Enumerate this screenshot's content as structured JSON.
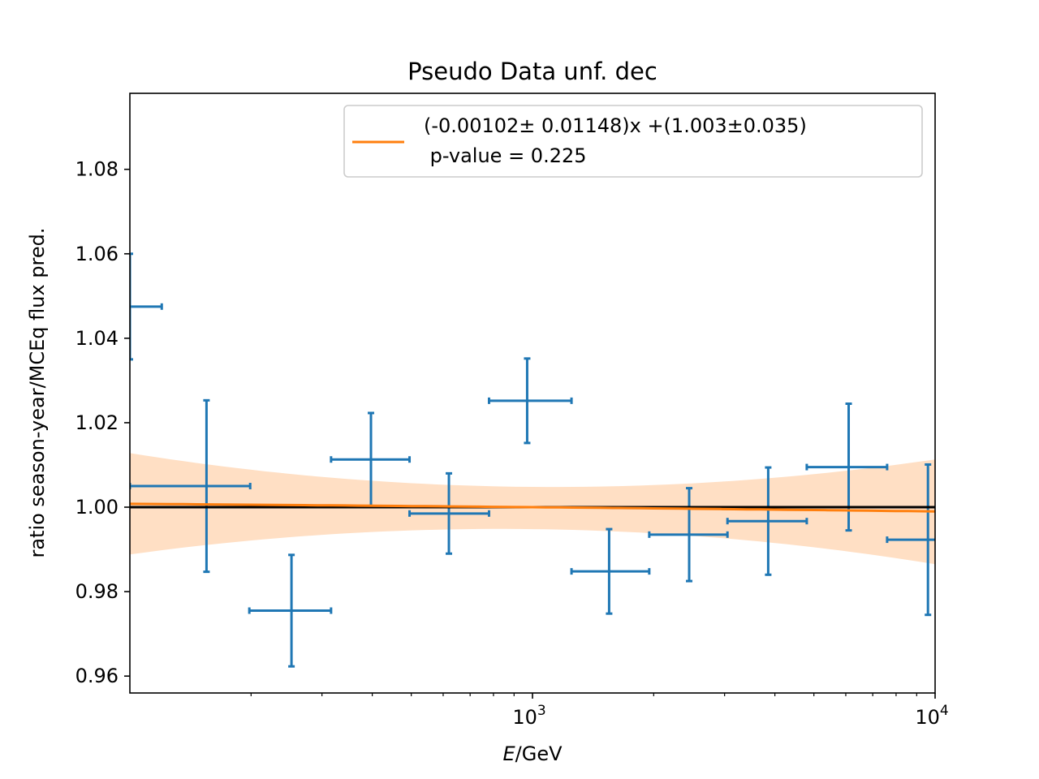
{
  "chart_data": {
    "type": "scatter",
    "title": "Pseudo Data unf. dec",
    "xlabel_italic": "E",
    "xlabel_rest": "/GeV",
    "ylabel": "ratio season-year/MCEq flux pred.",
    "xscale": "log",
    "xlim": [
      100,
      10000
    ],
    "ylim": [
      0.956,
      1.098
    ],
    "yticks": [
      0.96,
      0.98,
      1.0,
      1.02,
      1.04,
      1.06,
      1.08
    ],
    "ytick_labels": [
      "0.96",
      "0.98",
      "1.00",
      "1.02",
      "1.04",
      "1.06",
      "1.08"
    ],
    "xtick_major": [
      {
        "value": 1000,
        "base": "10",
        "exp": "3"
      },
      {
        "value": 10000,
        "base": "10",
        "exp": "4"
      }
    ],
    "legend_position": "upper right",
    "legend_entries": [
      {
        "line1": "(-0.00102± 0.01148)x +(1.003±0.035)",
        "line2": " p-value = 0.225"
      }
    ],
    "reference_line_y": 1.0,
    "fit": {
      "slope": -0.00102,
      "intercept": 1.003
    },
    "fit_band": {
      "x": [
        100,
        1000,
        10000
      ],
      "lower": [
        0.9888,
        0.9948,
        0.9865
      ],
      "upper": [
        1.0128,
        1.0048,
        1.0113
      ],
      "center": [
        1.0008,
        1.0,
        0.999
      ]
    },
    "series": [
      {
        "points": [
          {
            "x": 100,
            "xlo": 70,
            "xhi": 120,
            "y": 1.0475,
            "yerr": 0.0125
          },
          {
            "x": 155,
            "xlo": 100,
            "xhi": 199,
            "y": 1.005,
            "yerr": 0.0203
          },
          {
            "x": 252,
            "xlo": 198,
            "xhi": 316,
            "y": 0.9755,
            "yerr": 0.0132
          },
          {
            "x": 397,
            "xlo": 316,
            "xhi": 495,
            "y": 1.0113,
            "yerr": 0.011
          },
          {
            "x": 620,
            "xlo": 495,
            "xhi": 780,
            "y": 0.9985,
            "yerr": 0.0095
          },
          {
            "x": 970,
            "xlo": 780,
            "xhi": 1250,
            "y": 1.0252,
            "yerr": 0.01
          },
          {
            "x": 1550,
            "xlo": 1250,
            "xhi": 1950,
            "y": 0.9848,
            "yerr": 0.01
          },
          {
            "x": 2450,
            "xlo": 1950,
            "xhi": 3050,
            "y": 0.9935,
            "yerr": 0.011
          },
          {
            "x": 3850,
            "xlo": 3050,
            "xhi": 4800,
            "y": 0.9967,
            "yerr": 0.0127
          },
          {
            "x": 6100,
            "xlo": 4800,
            "xhi": 7600,
            "y": 1.0095,
            "yerr": 0.015
          },
          {
            "x": 9600,
            "xlo": 7600,
            "xhi": 12000,
            "y": 0.9923,
            "yerr": 0.0178
          }
        ]
      }
    ],
    "colors": {
      "data": "#1f77b4",
      "fit": "#ff7f0e",
      "band": "#ffdfc4",
      "reference": "#000000"
    }
  }
}
